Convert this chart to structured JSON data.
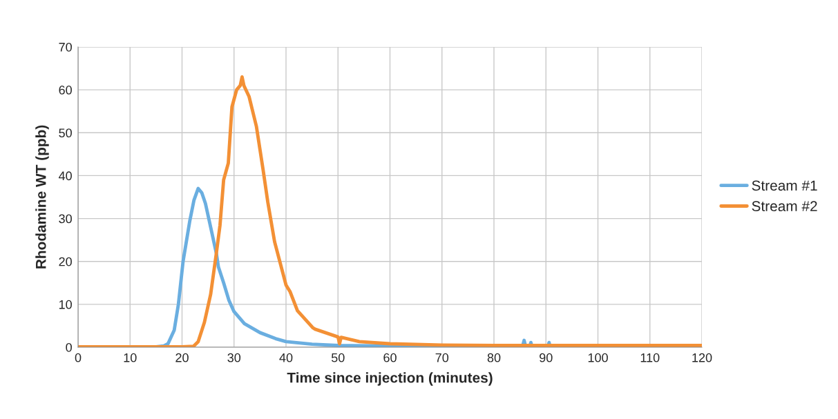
{
  "chart_data": {
    "type": "line",
    "xlabel": "Time since injection (minutes)",
    "ylabel": "Rhodamine WT (ppb)",
    "xlim": [
      0,
      120
    ],
    "xticks": [
      0,
      10,
      20,
      30,
      40,
      50,
      60,
      70,
      80,
      90,
      100,
      110,
      120
    ],
    "ylim": [
      0,
      70
    ],
    "yticks": [
      0,
      10,
      20,
      30,
      40,
      50,
      60,
      70
    ],
    "grid": true,
    "legend": "right",
    "marker": "none",
    "line_style": "solid",
    "series": [
      {
        "name": "Stream #1",
        "color": "#6aaee0",
        "x": [
          0,
          15,
          16.5,
          17.3,
          18.5,
          19.3,
          20.2,
          21.5,
          22.3,
          23.1,
          23.8,
          24.5,
          25.5,
          26.6,
          27,
          28,
          29,
          30,
          32,
          35,
          38,
          40,
          45,
          50,
          60,
          70,
          85.5,
          85.8,
          86.1,
          86.9,
          87.1,
          87.3,
          90.4,
          90.6,
          90.8
        ],
        "values": [
          0.1,
          0.1,
          0.3,
          0.8,
          4,
          10,
          20,
          29.5,
          34.3,
          37,
          36,
          33.5,
          28,
          21.9,
          18.7,
          15,
          11,
          8.3,
          5.5,
          3.4,
          2,
          1.3,
          0.7,
          0.4,
          0.3,
          0.2,
          0.2,
          1.6,
          0.2,
          0.2,
          1.1,
          0.2,
          0.2,
          1.1,
          0.2
        ]
      },
      {
        "name": "Stream #2",
        "color": "#f39035",
        "x": [
          0,
          10,
          20,
          22.2,
          23.1,
          24.3,
          25.5,
          26.6,
          27.3,
          28,
          28.9,
          29.6,
          30.5,
          31.2,
          31.55,
          31.9,
          32.9,
          34.3,
          35.6,
          36.5,
          37.8,
          40,
          40.8,
          42.2,
          45.2,
          45.6,
          50,
          50.3,
          50.6,
          54.1,
          60,
          70,
          80,
          90,
          100,
          110,
          120
        ],
        "values": [
          0.1,
          0.1,
          0.1,
          0.2,
          1.3,
          5.8,
          12.3,
          21.9,
          28.4,
          39,
          42.9,
          56,
          60,
          61,
          63,
          61,
          58.4,
          51.5,
          41.3,
          33.8,
          24.6,
          14.5,
          12.9,
          8.5,
          4.5,
          4.2,
          2.4,
          0.8,
          2.3,
          1.3,
          0.8,
          0.5,
          0.4,
          0.4,
          0.4,
          0.4,
          0.4
        ]
      }
    ]
  }
}
